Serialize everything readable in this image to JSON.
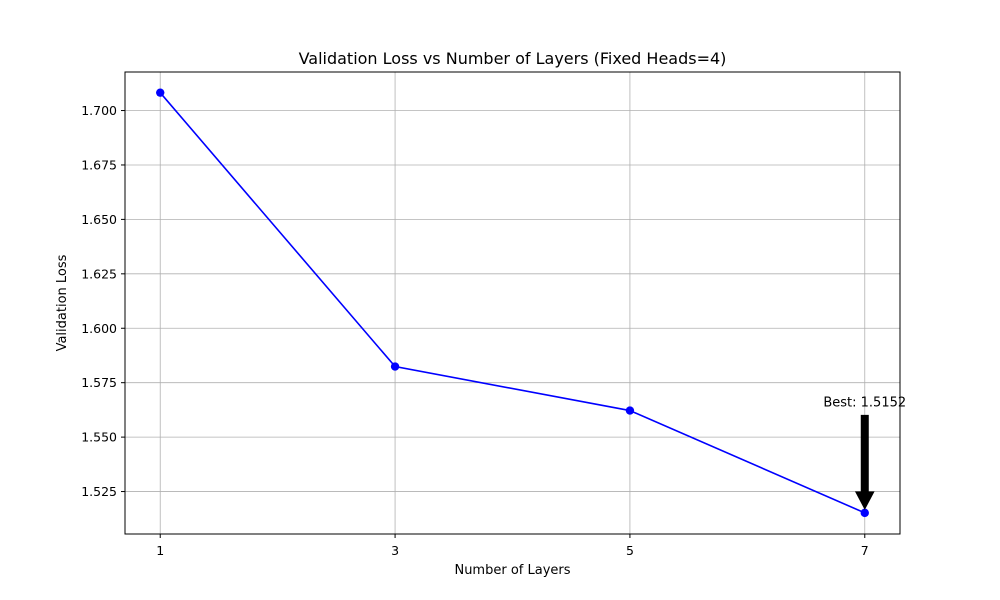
{
  "chart_data": {
    "type": "line",
    "title": "Validation Loss vs Number of Layers (Fixed Heads=4)",
    "xlabel": "Number of Layers",
    "ylabel": "Validation Loss",
    "x": [
      1,
      3,
      5,
      7
    ],
    "x_ticks": [
      1,
      3,
      5,
      7
    ],
    "x_tick_labels": [
      "1",
      "3",
      "5",
      "7"
    ],
    "xlim": [
      0.7,
      7.3
    ],
    "y_ticks": [
      1.525,
      1.55,
      1.575,
      1.6,
      1.625,
      1.65,
      1.675,
      1.7
    ],
    "y_tick_labels": [
      "1.525",
      "1.550",
      "1.575",
      "1.600",
      "1.625",
      "1.650",
      "1.675",
      "1.700"
    ],
    "ylim": [
      1.5055,
      1.7177
    ],
    "grid": true,
    "series": [
      {
        "values": [
          1.7082,
          1.5824,
          1.5622,
          1.5152
        ],
        "color": "#0000ff",
        "marker": "circle"
      }
    ],
    "annotations": [
      {
        "text": "Best: 1.5152",
        "x": 7,
        "y": 1.5152,
        "arrow_from_y": 1.56,
        "text_y": 1.564,
        "color": "#000000"
      }
    ]
  }
}
